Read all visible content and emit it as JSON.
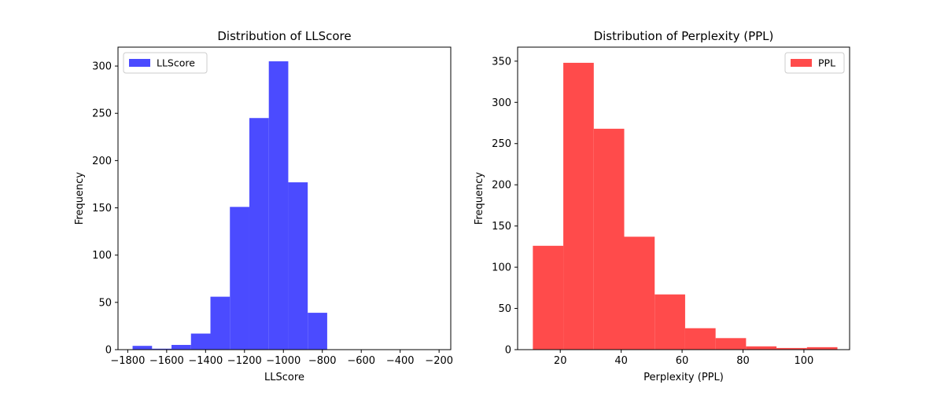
{
  "chart_data": [
    {
      "type": "bar",
      "title": "Distribution of LLScore",
      "xlabel": "LLScore",
      "ylabel": "Frequency",
      "xlim": [
        -1850,
        -140
      ],
      "ylim": [
        0,
        320
      ],
      "xticks": [
        -1800,
        -1600,
        -1400,
        -1200,
        -1000,
        -800,
        -600,
        -400,
        -200
      ],
      "xtick_labels": [
        "−1800",
        "−1600",
        "−1400",
        "−1200",
        "−1000",
        "−800",
        "−600",
        "−400",
        "−200"
      ],
      "yticks": [
        0,
        50,
        100,
        150,
        200,
        250,
        300
      ],
      "ytick_labels": [
        "0",
        "50",
        "100",
        "150",
        "200",
        "250",
        "300"
      ],
      "bin_edges": [
        -1775,
        -1675,
        -1575,
        -1475,
        -1375,
        -1275,
        -1175,
        -1075,
        -975,
        -875,
        -775,
        -675,
        -575,
        -475,
        -375,
        -275,
        -175
      ],
      "bins": [
        {
          "x0": -1775,
          "x1": -1675,
          "count": 4
        },
        {
          "x0": -1675,
          "x1": -1575,
          "count": 1
        },
        {
          "x0": -1575,
          "x1": -1475,
          "count": 5
        },
        {
          "x0": -1475,
          "x1": -1375,
          "count": 17
        },
        {
          "x0": -1375,
          "x1": -1275,
          "count": 56
        },
        {
          "x0": -1275,
          "x1": -1175,
          "count": 151
        },
        {
          "x0": -1175,
          "x1": -1075,
          "count": 245
        },
        {
          "x0": -1075,
          "x1": -975,
          "count": 305
        },
        {
          "x0": -975,
          "x1": -875,
          "count": 177
        },
        {
          "x0": -875,
          "x1": -775,
          "count": 39
        }
      ],
      "series": [
        {
          "name": "LLScore",
          "color": "#4b4bff"
        }
      ],
      "legend": {
        "position": "top-left"
      },
      "grid": false
    },
    {
      "type": "bar",
      "title": "Distribution of Perplexity (PPL)",
      "xlabel": "Perplexity (PPL)",
      "ylabel": "Frequency",
      "xlim": [
        6,
        115
      ],
      "ylim": [
        0,
        367
      ],
      "xticks": [
        20,
        40,
        60,
        80,
        100
      ],
      "xtick_labels": [
        "20",
        "40",
        "60",
        "80",
        "100"
      ],
      "yticks": [
        0,
        50,
        100,
        150,
        200,
        250,
        300,
        350
      ],
      "ytick_labels": [
        "0",
        "50",
        "100",
        "150",
        "200",
        "250",
        "300",
        "350"
      ],
      "bins": [
        {
          "x0": 11,
          "x1": 21,
          "count": 126
        },
        {
          "x0": 21,
          "x1": 31,
          "count": 348
        },
        {
          "x0": 31,
          "x1": 41,
          "count": 268
        },
        {
          "x0": 41,
          "x1": 51,
          "count": 137
        },
        {
          "x0": 51,
          "x1": 61,
          "count": 67
        },
        {
          "x0": 61,
          "x1": 71,
          "count": 26
        },
        {
          "x0": 71,
          "x1": 81,
          "count": 14
        },
        {
          "x0": 81,
          "x1": 91,
          "count": 4
        },
        {
          "x0": 91,
          "x1": 101,
          "count": 2
        },
        {
          "x0": 101,
          "x1": 111,
          "count": 3
        }
      ],
      "series": [
        {
          "name": "PPL",
          "color": "#ff4b4b"
        }
      ],
      "legend": {
        "position": "top-right"
      },
      "grid": false
    }
  ]
}
